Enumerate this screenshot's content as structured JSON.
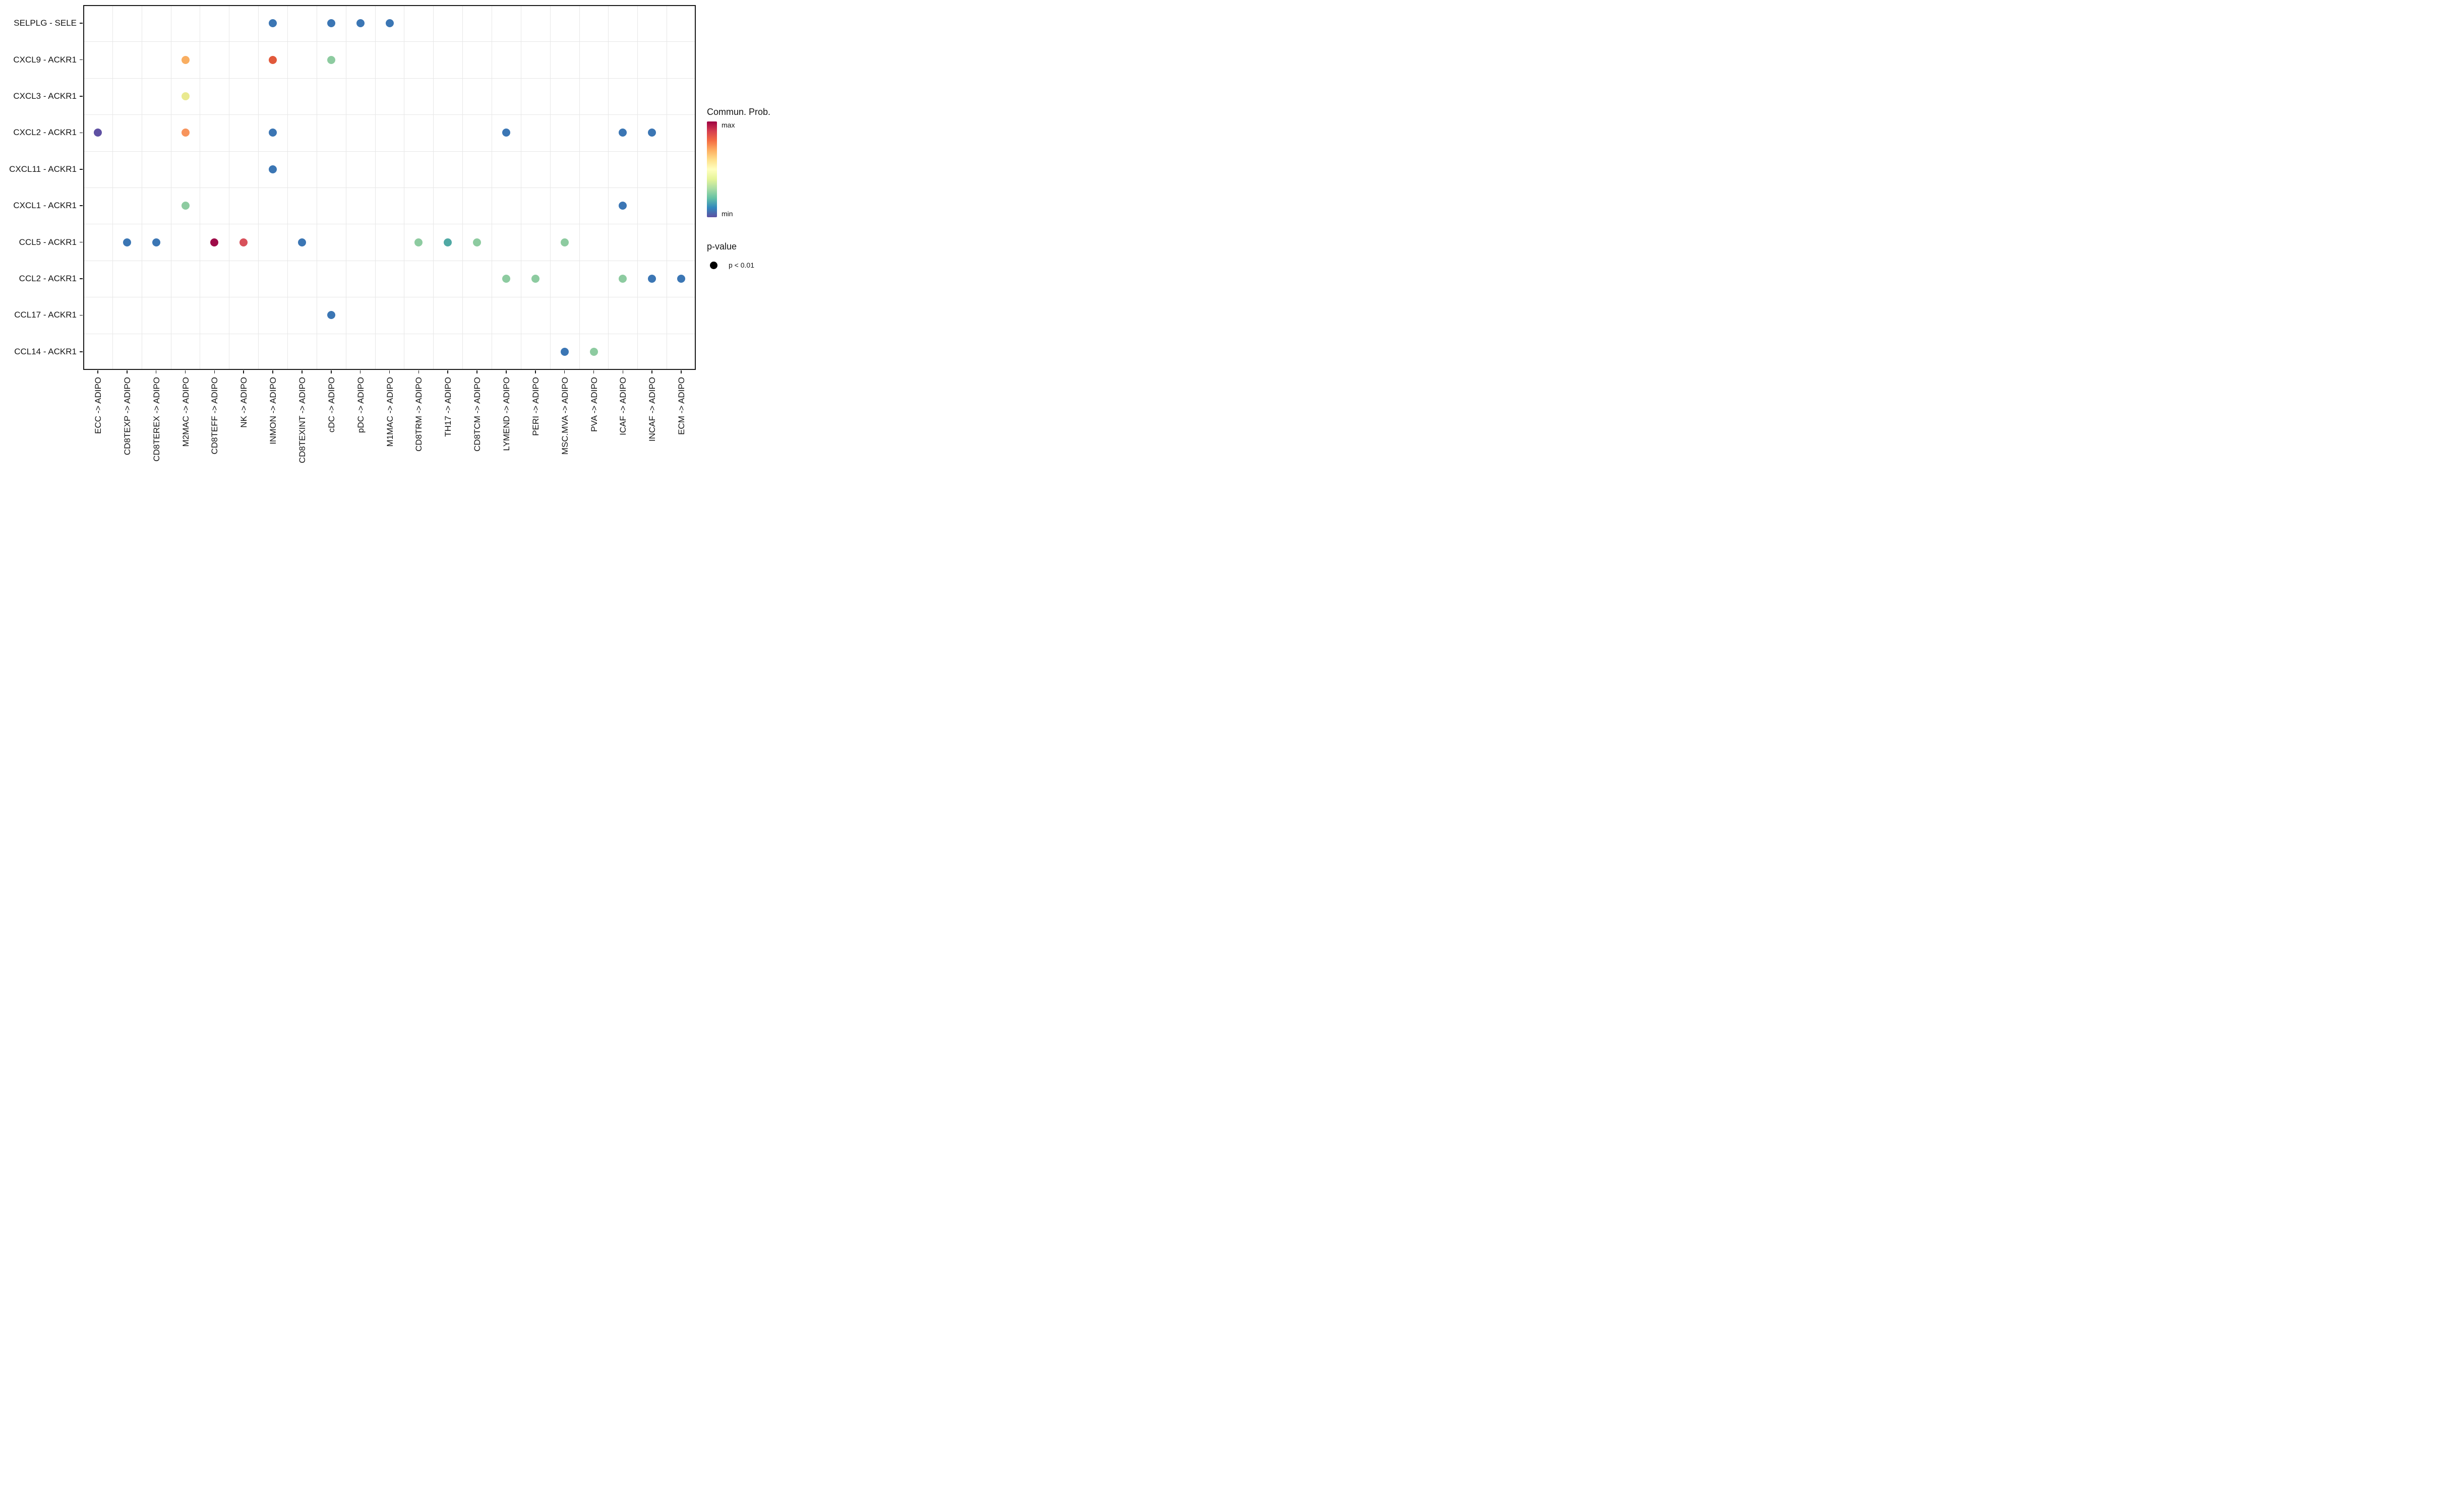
{
  "chart_data": {
    "type": "scatter",
    "subtype": "dot-matrix-bubble-plot",
    "title": "",
    "xlabel": "",
    "ylabel": "",
    "grid": "on",
    "rows": [
      "SELPLG - SELE",
      "CXCL9 - ACKR1",
      "CXCL3 - ACKR1",
      "CXCL2 - ACKR1",
      "CXCL11 - ACKR1",
      "CXCL1 - ACKR1",
      "CCL5 - ACKR1",
      "CCL2 - ACKR1",
      "CCL17 - ACKR1",
      "CCL14 - ACKR1"
    ],
    "columns": [
      "ECC -> ADIPO",
      "CD8TEXP -> ADIPO",
      "CD8TEREX -> ADIPO",
      "M2MAC -> ADIPO",
      "CD8TEFF -> ADIPO",
      "NK -> ADIPO",
      "INMON -> ADIPO",
      "CD8TEXINT -> ADIPO",
      "cDC -> ADIPO",
      "pDC -> ADIPO",
      "M1MAC -> ADIPO",
      "CD8TRM -> ADIPO",
      "TH17 -> ADIPO",
      "CD8TCM -> ADIPO",
      "LYMEND -> ADIPO",
      "PERI -> ADIPO",
      "MSC.MVA -> ADIPO",
      "PVA -> ADIPO",
      "ICAF -> ADIPO",
      "INCAF -> ADIPO",
      "ECM -> ADIPO"
    ],
    "points": [
      {
        "row": "SELPLG - SELE",
        "column": "INMON -> ADIPO",
        "color": "#3b76b4"
      },
      {
        "row": "SELPLG - SELE",
        "column": "cDC -> ADIPO",
        "color": "#3b76b4"
      },
      {
        "row": "SELPLG - SELE",
        "column": "pDC -> ADIPO",
        "color": "#3b76b4"
      },
      {
        "row": "SELPLG - SELE",
        "column": "M1MAC -> ADIPO",
        "color": "#3b76b4"
      },
      {
        "row": "CXCL9 - ACKR1",
        "column": "M2MAC -> ADIPO",
        "color": "#f9ae61"
      },
      {
        "row": "CXCL9 - ACKR1",
        "column": "INMON -> ADIPO",
        "color": "#e1593b"
      },
      {
        "row": "CXCL9 - ACKR1",
        "column": "cDC -> ADIPO",
        "color": "#8dcba0"
      },
      {
        "row": "CXCL3 - ACKR1",
        "column": "M2MAC -> ADIPO",
        "color": "#e9e98f"
      },
      {
        "row": "CXCL2 - ACKR1",
        "column": "ECC -> ADIPO",
        "color": "#5f51a3"
      },
      {
        "row": "CXCL2 - ACKR1",
        "column": "M2MAC -> ADIPO",
        "color": "#f7945c"
      },
      {
        "row": "CXCL2 - ACKR1",
        "column": "INMON -> ADIPO",
        "color": "#3b76b4"
      },
      {
        "row": "CXCL2 - ACKR1",
        "column": "LYMEND -> ADIPO",
        "color": "#3b76b4"
      },
      {
        "row": "CXCL2 - ACKR1",
        "column": "ICAF -> ADIPO",
        "color": "#3b76b4"
      },
      {
        "row": "CXCL2 - ACKR1",
        "column": "INCAF -> ADIPO",
        "color": "#3b76b4"
      },
      {
        "row": "CXCL11 - ACKR1",
        "column": "INMON -> ADIPO",
        "color": "#3b76b4"
      },
      {
        "row": "CXCL1 - ACKR1",
        "column": "M2MAC -> ADIPO",
        "color": "#8dcba0"
      },
      {
        "row": "CXCL1 - ACKR1",
        "column": "ICAF -> ADIPO",
        "color": "#3b76b4"
      },
      {
        "row": "CCL5 - ACKR1",
        "column": "CD8TEXP -> ADIPO",
        "color": "#3b76b4"
      },
      {
        "row": "CCL5 - ACKR1",
        "column": "CD8TEREX -> ADIPO",
        "color": "#3b76b4"
      },
      {
        "row": "CCL5 - ACKR1",
        "column": "CD8TEFF -> ADIPO",
        "color": "#9e0c48"
      },
      {
        "row": "CCL5 - ACKR1",
        "column": "NK -> ADIPO",
        "color": "#d8505a"
      },
      {
        "row": "CCL5 - ACKR1",
        "column": "CD8TEXINT -> ADIPO",
        "color": "#3b76b4"
      },
      {
        "row": "CCL5 - ACKR1",
        "column": "CD8TRM -> ADIPO",
        "color": "#8dcba0"
      },
      {
        "row": "CCL5 - ACKR1",
        "column": "TH17 -> ADIPO",
        "color": "#50a9a4"
      },
      {
        "row": "CCL5 - ACKR1",
        "column": "CD8TCM -> ADIPO",
        "color": "#8dcba0"
      },
      {
        "row": "CCL5 - ACKR1",
        "column": "MSC.MVA -> ADIPO",
        "color": "#8dcba0"
      },
      {
        "row": "CCL2 - ACKR1",
        "column": "LYMEND -> ADIPO",
        "color": "#8dcba0"
      },
      {
        "row": "CCL2 - ACKR1",
        "column": "PERI -> ADIPO",
        "color": "#8dcba0"
      },
      {
        "row": "CCL2 - ACKR1",
        "column": "ICAF -> ADIPO",
        "color": "#8dcba0"
      },
      {
        "row": "CCL2 - ACKR1",
        "column": "INCAF -> ADIPO",
        "color": "#3b76b4"
      },
      {
        "row": "CCL2 - ACKR1",
        "column": "ECM -> ADIPO",
        "color": "#3b76b4"
      },
      {
        "row": "CCL17 - ACKR1",
        "column": "cDC -> ADIPO",
        "color": "#3b76b4"
      },
      {
        "row": "CCL14 - ACKR1",
        "column": "MSC.MVA -> ADIPO",
        "color": "#3b76b4"
      },
      {
        "row": "CCL14 - ACKR1",
        "column": "PVA -> ADIPO",
        "color": "#8dcba0"
      }
    ],
    "colormap": {
      "orientation": "vertical",
      "top_label": "max",
      "bottom_label": "min",
      "stops_top_to_bottom": [
        "#9e0142",
        "#d53e4f",
        "#f46d43",
        "#fdae61",
        "#fee08b",
        "#ffffbf",
        "#e6f598",
        "#abdda4",
        "#66c2a5",
        "#3288bd",
        "#5e4fa2"
      ]
    },
    "legend_position": "right"
  },
  "legend": {
    "colorbar_title": "Commun. Prob.",
    "max_label": "max",
    "min_label": "min",
    "pvalue_title": "p-value",
    "pvalue_items": [
      {
        "label": "p < 0.01"
      }
    ]
  }
}
